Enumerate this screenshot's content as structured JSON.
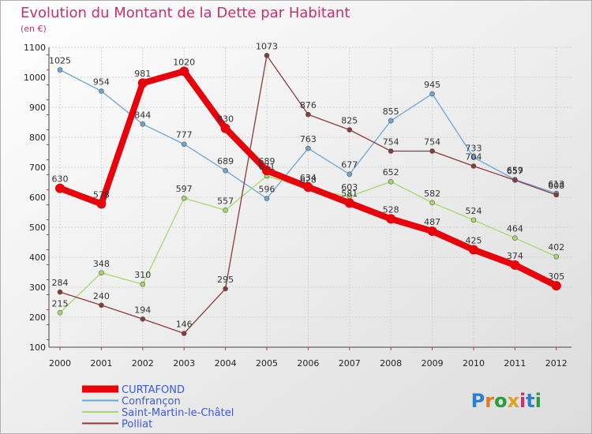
{
  "chart_data": {
    "type": "line",
    "title": "Evolution du Montant de la Dette par Habitant",
    "subtitle": "(en €)",
    "ylim": [
      100,
      1100
    ],
    "yticks": [
      100,
      200,
      300,
      400,
      500,
      600,
      700,
      800,
      900,
      1000,
      1100
    ],
    "categories": [
      "2000",
      "2001",
      "2002",
      "2003",
      "2004",
      "2005",
      "2006",
      "2007",
      "2008",
      "2009",
      "2010",
      "2011",
      "2012"
    ],
    "grid": true,
    "legend_position": "bottom-left",
    "series": [
      {
        "name": "CURTAFOND",
        "color": "#e8000b",
        "emphasis": true,
        "values": [
          630,
          578,
          981,
          1020,
          830,
          689,
          634,
          581,
          528,
          487,
          425,
          374,
          305
        ]
      },
      {
        "name": "Confrançon",
        "color": "#6aa6d8",
        "values": [
          1025,
          954,
          844,
          777,
          689,
          596,
          763,
          677,
          855,
          945,
          733,
          659,
          613
        ]
      },
      {
        "name": "Saint-Martin-le-Châtel",
        "color": "#a6d96a",
        "values": [
          215,
          348,
          310,
          597,
          557,
          671,
          628,
          603,
          652,
          582,
          524,
          464,
          402
        ]
      },
      {
        "name": "Polliat",
        "color": "#8b3a3a",
        "values": [
          284,
          240,
          194,
          146,
          295,
          1073,
          876,
          825,
          754,
          754,
          704,
          657,
          608
        ]
      }
    ]
  },
  "logo": {
    "text": "Proxiti"
  }
}
